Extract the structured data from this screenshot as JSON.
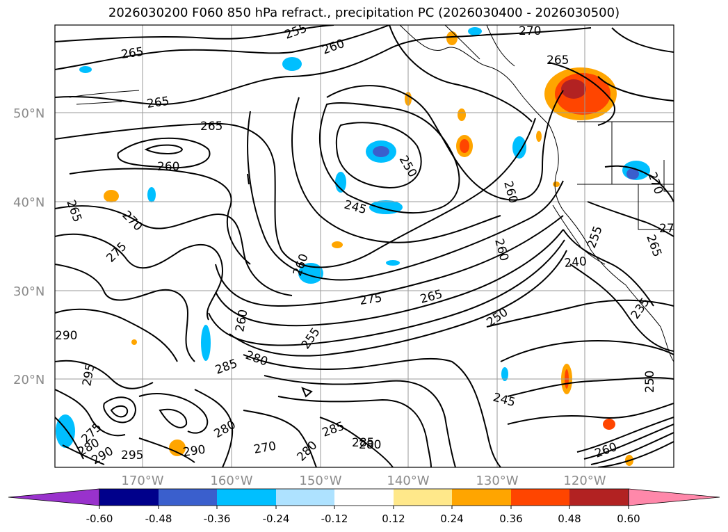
{
  "title": "2026030200 F060 850 hPa refract., precipitation PC (2026030400 - 2026030500)",
  "map": {
    "lat_labels": [
      "50°N",
      "40°N",
      "30°N",
      "20°N"
    ],
    "lon_labels": [
      "170°W",
      "160°W",
      "150°W",
      "140°W",
      "130°W",
      "120°W"
    ]
  },
  "contour_labels": [
    "265",
    "265",
    "265",
    "260",
    "260",
    "255",
    "250",
    "245",
    "270",
    "275",
    "270",
    "265",
    "260",
    "260",
    "255",
    "250",
    "240",
    "235",
    "275",
    "265",
    "260",
    "255",
    "250",
    "245",
    "290",
    "295",
    "285",
    "280",
    "275",
    "280",
    "290",
    "295",
    "290",
    "280",
    "285",
    "280",
    "285",
    "260",
    "265",
    "270",
    "270",
    "265",
    "280",
    "275",
    "260"
  ],
  "colorbar": {
    "ticks": [
      "-0.60",
      "-0.48",
      "-0.36",
      "-0.24",
      "-0.12",
      "0.12",
      "0.24",
      "0.36",
      "0.48",
      "0.60"
    ],
    "colors": [
      "#9932cc",
      "#00008b",
      "#3a5fcd",
      "#00bfff",
      "#aee2ff",
      "#ffffff",
      "#ffe88a",
      "#ffa500",
      "#ff4500",
      "#b22222",
      "#ff88aa"
    ]
  }
}
